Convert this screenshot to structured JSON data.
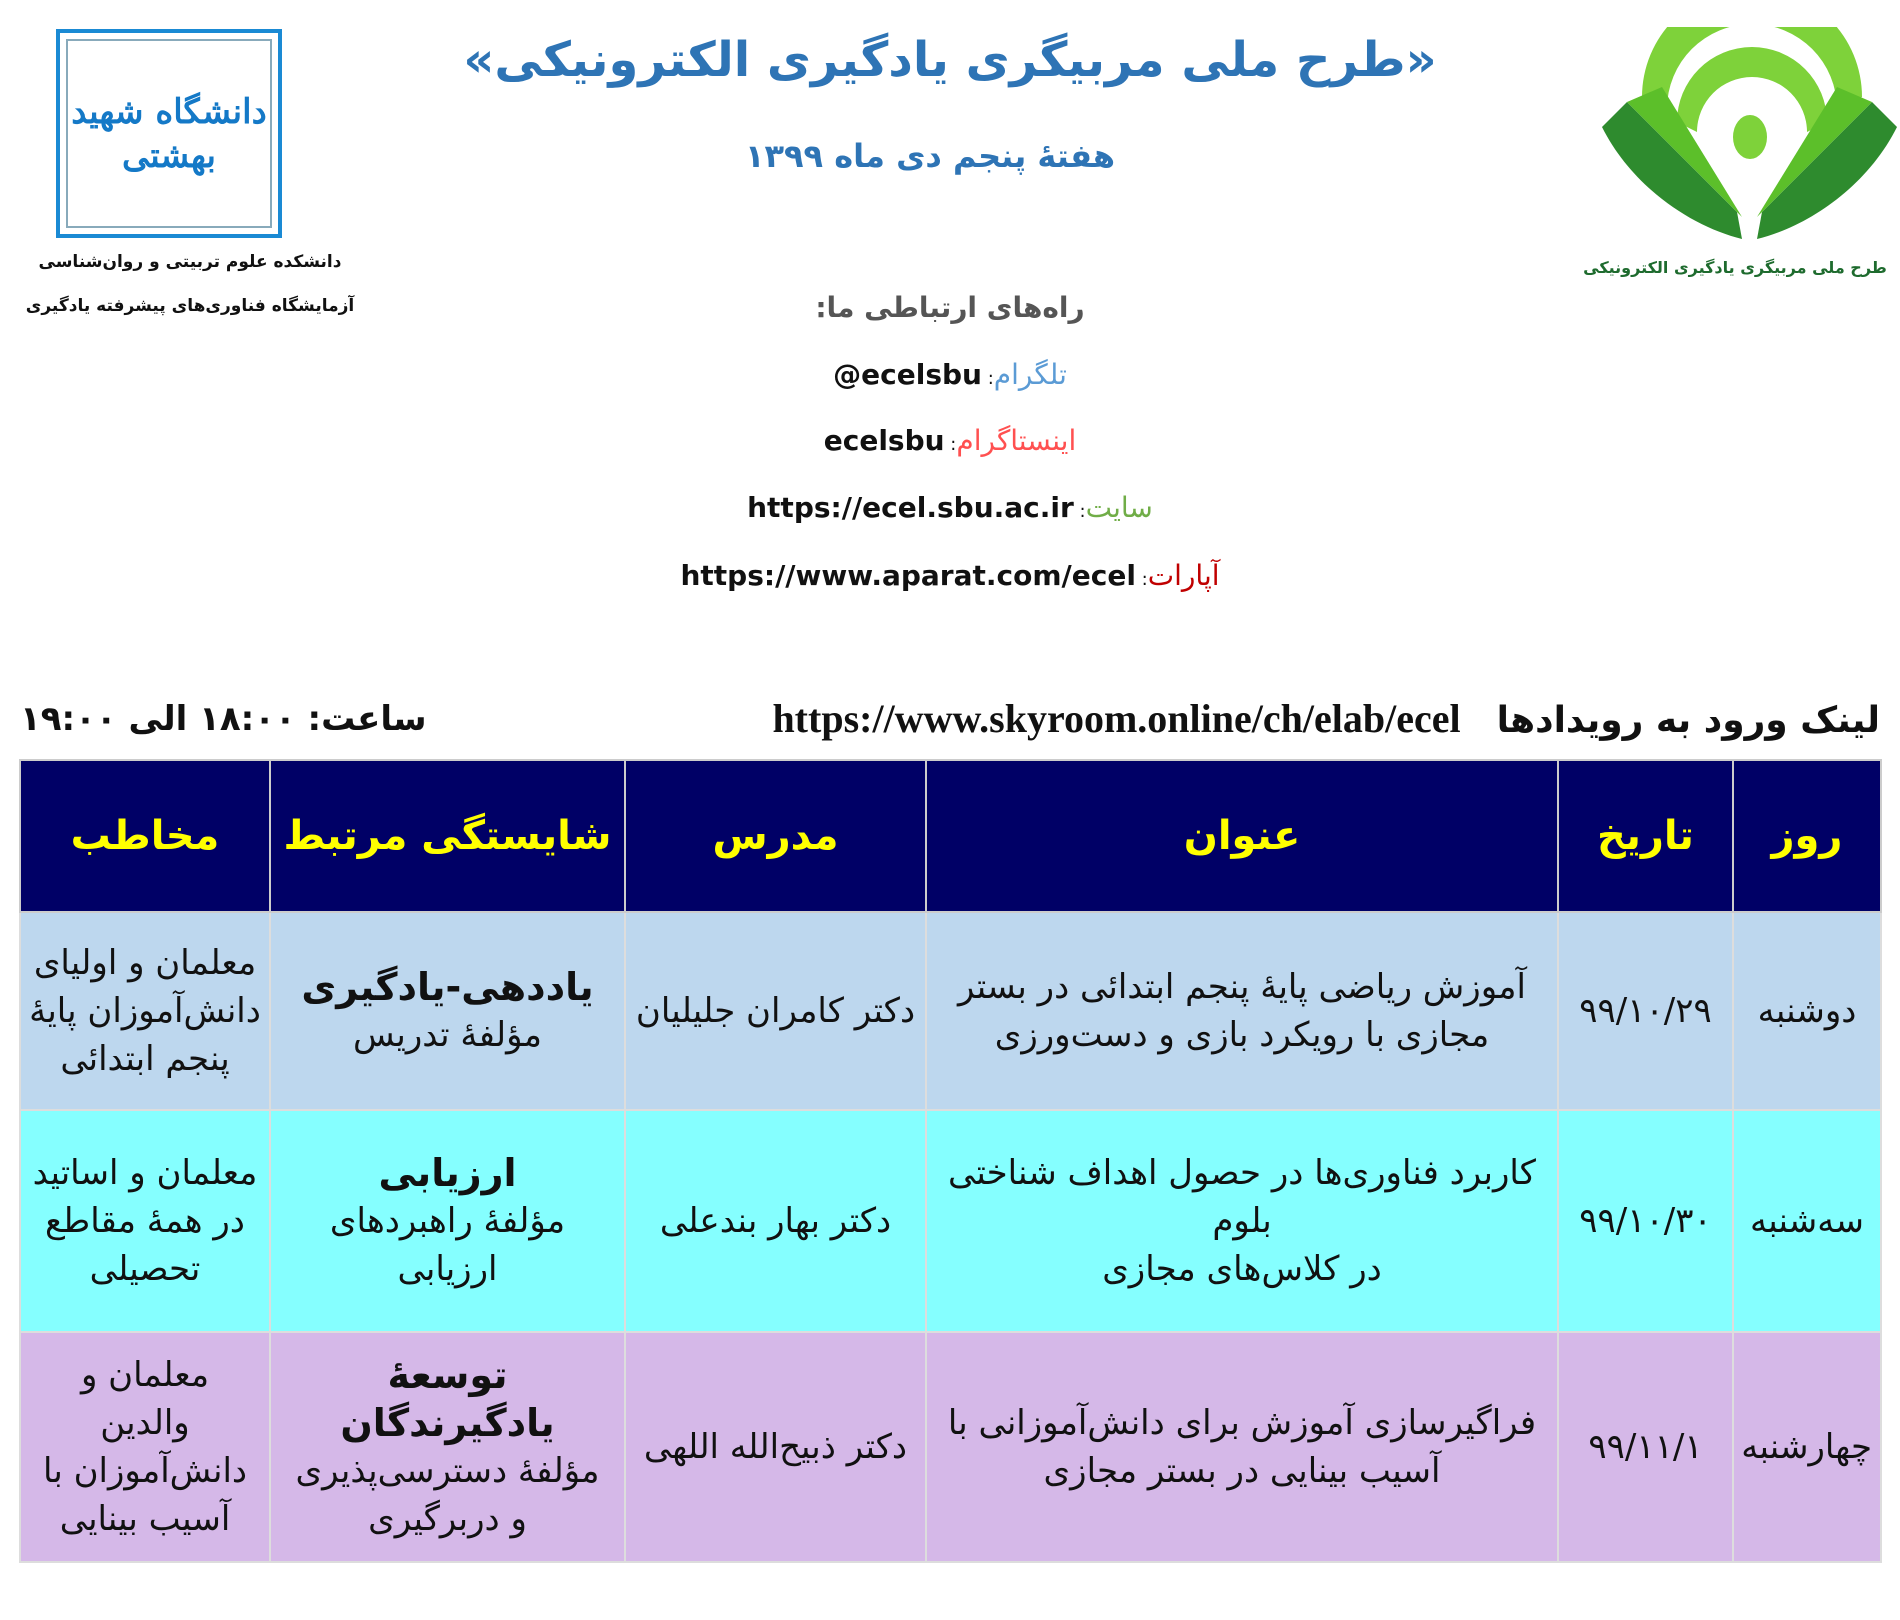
{
  "header": {
    "title": "«طرح ملی مربیگری یادگیری الکترونیکی»",
    "subtitle": "هفتهٔ پنجم دی ماه ۱۳۹۹"
  },
  "left_logo": {
    "lettering": "دانشگاه شهید بهشتی",
    "caption_1": "دانشکده علوم تربیتی و روان‌شناسی",
    "caption_2": "آزمایشگاه فناوری‌های پیشرفته یادگیری"
  },
  "right_logo": {
    "caption": "طرح ملی مربیگری یادگیری الکترونیکی"
  },
  "contacts": {
    "title": "راه‌های ارتباطی ما:",
    "items": [
      {
        "label": "تلگرام",
        "value": "@ecelsbu",
        "color": "#5B9BD5"
      },
      {
        "label": "اینستاگرام",
        "value": "ecelsbu",
        "color": "#FF5050"
      },
      {
        "label": "سایت",
        "value": "https://ecel.sbu.ac.ir",
        "color": "#70AD47"
      },
      {
        "label": "آپارات",
        "value": "https://www.aparat.com/ecel",
        "color": "#C00000"
      }
    ]
  },
  "events_link": {
    "label": "لینک ورود به رویدادها",
    "url": "https://www.skyroom.online/ch/elab/ecel"
  },
  "time": "ساعت: ۱۸:۰۰ الی ۱۹:۰۰",
  "table": {
    "headers": [
      "روز",
      "تاریخ",
      "عنوان",
      "مدرس",
      "شایستگی مرتبط",
      "مخاطب"
    ],
    "rows": [
      {
        "day": "دوشنبه",
        "date": "۹۹/۱۰/۲۹",
        "title": [
          "آموزش ریاضی پایهٔ پنجم ابتدائی در بستر",
          "مجازی با رویکرد بازی و دست‌ورزی"
        ],
        "teacher": "دکتر کامران جلیلیان",
        "competency": "یاددهی-یادگیری",
        "component": [
          "مؤلفهٔ تدریس"
        ],
        "audience": [
          "معلمان و اولیای",
          "دانش‌آموزان پایهٔ",
          "پنجم ابتدائی"
        ]
      },
      {
        "day": "سه‌شنبه",
        "date": "۹۹/۱۰/۳۰",
        "title": [
          "کاربرد فناوری‌ها در حصول اهداف شناختی بلوم",
          "در کلاس‌های مجازی"
        ],
        "teacher": "دکتر بهار بندعلی",
        "competency": "ارزیابی",
        "component": [
          "مؤلفهٔ راهبردهای ارزیابی"
        ],
        "audience": [
          "معلمان و اساتید",
          "در همهٔ مقاطع",
          "تحصیلی"
        ]
      },
      {
        "day": "چهارشنبه",
        "date": "۹۹/۱۱/۱",
        "title": [
          "فراگیرسازی آموزش برای دانش‌آموزانی با",
          "آسیب بینایی در بستر مجازی"
        ],
        "teacher": "دکتر ذبیح‌الله اللهی",
        "competency": "توسعهٔ یادگیرندگان",
        "component": [
          "مؤلفهٔ دسترسی‌پذیری",
          "و دربرگیری"
        ],
        "audience": [
          "معلمان و",
          "والدین",
          "دانش‌آموزان با",
          "آسیب بینایی"
        ]
      }
    ]
  },
  "colors": {
    "title": "#2E74B5",
    "header_bg": "#000066",
    "header_text": "#FFFF00",
    "row1": "#BDD7EE",
    "row2": "#85FFFF",
    "row3": "#D5B8E8"
  }
}
